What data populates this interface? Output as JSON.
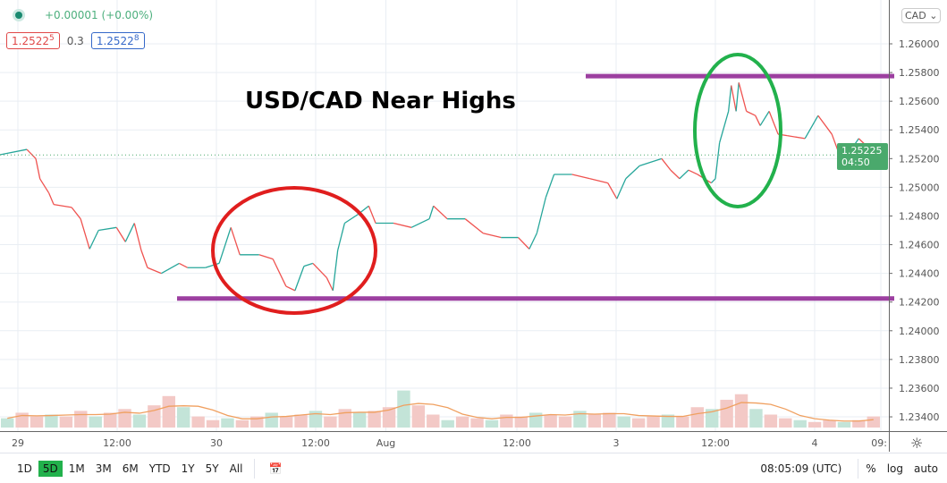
{
  "legend": {
    "change": "+0.00001 (+0.00%)",
    "bid": "1.2522",
    "bid_sup": "5",
    "spread": "0.3",
    "ask": "1.2522",
    "ask_sup": "8"
  },
  "currency_select": "CAD",
  "last_price_label": {
    "price": "1.25225",
    "countdown": "04:50"
  },
  "toolbar": {
    "ranges": [
      "1D",
      "5D",
      "1M",
      "3M",
      "6M",
      "YTD",
      "1Y",
      "5Y",
      "All"
    ],
    "active_range": "5D",
    "clock": "08:05:09 (UTC)",
    "percent": "%",
    "log": "log",
    "auto": "auto"
  },
  "colors": {
    "up": "#26a69a",
    "down": "#ef5350",
    "last_price": "#4aa96c",
    "annotation_lines": "#9c3fa0",
    "red_circle": "#e01e1e",
    "green_circle": "#22b14c",
    "volume_ma": "#f0a060"
  },
  "chart_data": {
    "type": "line",
    "title": "USD/CAD Near Highs",
    "yticks": [
      "1.26000",
      "1.25800",
      "1.25600",
      "1.25400",
      "1.25200",
      "1.25000",
      "1.24800",
      "1.24600",
      "1.24400",
      "1.24200",
      "1.24000",
      "1.23800",
      "1.23600",
      "1.23400"
    ],
    "ylim": [
      1.2328,
      1.2616
    ],
    "xticks": [
      {
        "label": "29",
        "t": "07-29 00:00"
      },
      {
        "label": "12:00",
        "t": "07-29 12:00"
      },
      {
        "label": "30",
        "t": "07-30 00:00"
      },
      {
        "label": "12:00",
        "t": "07-30 12:00"
      },
      {
        "label": "Aug",
        "t": "08-01 20:10"
      },
      {
        "label": "12:00",
        "t": "08-02 12:00"
      },
      {
        "label": "3",
        "t": "08-03 00:00"
      },
      {
        "label": "12:00",
        "t": "08-03 12:00"
      },
      {
        "label": "4",
        "t": "08-04 00:00"
      },
      {
        "label": "09:",
        "t": "08-04 08:00"
      }
    ],
    "grid": true,
    "series": [
      {
        "points": [
          [
            "07-28 21:50",
            1.25227
          ],
          [
            "07-29 01:05",
            1.25264
          ],
          [
            "07-29 02:10",
            1.252
          ],
          [
            "07-29 02:40",
            1.25059
          ],
          [
            "07-29 03:45",
            1.2496
          ],
          [
            "07-29 04:20",
            1.2488
          ],
          [
            "07-29 06:30",
            1.2486
          ],
          [
            "07-29 07:35",
            1.2478
          ],
          [
            "07-29 08:40",
            1.2457
          ],
          [
            "07-29 09:45",
            1.247
          ],
          [
            "07-29 11:55",
            1.2472
          ],
          [
            "07-29 13:00",
            1.2462
          ],
          [
            "07-29 14:05",
            1.2475
          ],
          [
            "07-29 14:55",
            1.2456
          ],
          [
            "07-29 15:40",
            1.2444
          ],
          [
            "07-29 17:20",
            1.244
          ],
          [
            "07-29 19:30",
            1.2447
          ],
          [
            "07-29 20:30",
            1.2444
          ],
          [
            "07-29 22:40",
            1.2444
          ],
          [
            "07-30 00:20",
            1.2447
          ],
          [
            "07-30 01:45",
            1.2472
          ],
          [
            "07-30 02:50",
            1.2453
          ],
          [
            "07-30 05:10",
            1.2453
          ],
          [
            "07-30 06:50",
            1.245
          ],
          [
            "07-30 08:25",
            1.2431
          ],
          [
            "07-30 09:30",
            1.2428
          ],
          [
            "07-30 10:35",
            1.2445
          ],
          [
            "07-30 11:40",
            1.2447
          ],
          [
            "07-30 13:20",
            1.2437
          ],
          [
            "07-30 14:05",
            1.2428
          ],
          [
            "07-30 14:40",
            1.2456
          ],
          [
            "07-30 15:30",
            1.2475
          ],
          [
            "07-30 17:05",
            1.2481
          ],
          [
            "07-30 18:25",
            1.2487
          ],
          [
            "07-30 19:15",
            1.2475
          ],
          [
            "08-01 21:05",
            1.2475
          ],
          [
            "08-01 23:15",
            1.2472
          ],
          [
            "08-02 01:25",
            1.2478
          ],
          [
            "08-02 01:55",
            1.2487
          ],
          [
            "08-02 03:35",
            1.2478
          ],
          [
            "08-02 05:45",
            1.2478
          ],
          [
            "08-02 07:55",
            1.2468
          ],
          [
            "08-02 10:05",
            1.2465
          ],
          [
            "08-02 12:10",
            1.2465
          ],
          [
            "08-02 13:30",
            1.2457
          ],
          [
            "08-02 14:25",
            1.2468
          ],
          [
            "08-02 15:30",
            1.2493
          ],
          [
            "08-02 16:30",
            1.2509
          ],
          [
            "08-02 18:40",
            1.2509
          ],
          [
            "08-02 20:50",
            1.2506
          ],
          [
            "08-02 23:00",
            1.2503
          ],
          [
            "08-03 00:05",
            1.2492
          ],
          [
            "08-03 01:10",
            1.2506
          ],
          [
            "08-03 02:50",
            1.2515
          ],
          [
            "08-03 05:30",
            1.252
          ],
          [
            "08-03 06:35",
            1.2512
          ],
          [
            "08-03 07:40",
            1.2506
          ],
          [
            "08-03 08:45",
            1.2512
          ],
          [
            "08-03 09:50",
            1.2509
          ],
          [
            "08-03 11:30",
            1.2503
          ],
          [
            "08-03 12:00",
            1.2506
          ],
          [
            "08-03 12:30",
            1.2531
          ],
          [
            "08-03 13:35",
            1.2553
          ],
          [
            "08-03 13:55",
            1.2571
          ],
          [
            "08-03 14:30",
            1.2553
          ],
          [
            "08-03 14:50",
            1.2573
          ],
          [
            "08-03 15:45",
            1.2553
          ],
          [
            "08-03 16:50",
            1.255
          ],
          [
            "08-03 17:25",
            1.2543
          ],
          [
            "08-03 18:30",
            1.2553
          ],
          [
            "08-03 19:35",
            1.2537
          ],
          [
            "08-03 20:40",
            1.2536
          ],
          [
            "08-03 22:50",
            1.2534
          ],
          [
            "08-04 00:25",
            1.255
          ],
          [
            "08-04 02:05",
            1.2537
          ],
          [
            "08-04 03:10",
            1.252
          ],
          [
            "08-04 04:15",
            1.2525
          ],
          [
            "08-04 05:20",
            1.2534
          ],
          [
            "08-04 06:25",
            1.2528
          ],
          [
            "08-04 07:30",
            1.2518
          ],
          [
            "08-04 08:00",
            1.25225
          ]
        ]
      }
    ],
    "last_price": 1.25225,
    "annotations": {
      "resistance": 1.25775,
      "support": 1.24225
    },
    "volume_relative": [
      0.25,
      0.4,
      0.3,
      0.35,
      0.3,
      0.45,
      0.3,
      0.4,
      0.5,
      0.35,
      0.6,
      0.85,
      0.55,
      0.3,
      0.2,
      0.25,
      0.2,
      0.3,
      0.4,
      0.3,
      0.35,
      0.45,
      0.3,
      0.5,
      0.4,
      0.45,
      0.55,
      1.0,
      0.6,
      0.35,
      0.2,
      0.3,
      0.25,
      0.2,
      0.35,
      0.3,
      0.4,
      0.35,
      0.3,
      0.45,
      0.35,
      0.4,
      0.3,
      0.25,
      0.3,
      0.35,
      0.3,
      0.55,
      0.5,
      0.75,
      0.9,
      0.5,
      0.35,
      0.25,
      0.2,
      0.15,
      0.2,
      0.15,
      0.2,
      0.3
    ]
  }
}
